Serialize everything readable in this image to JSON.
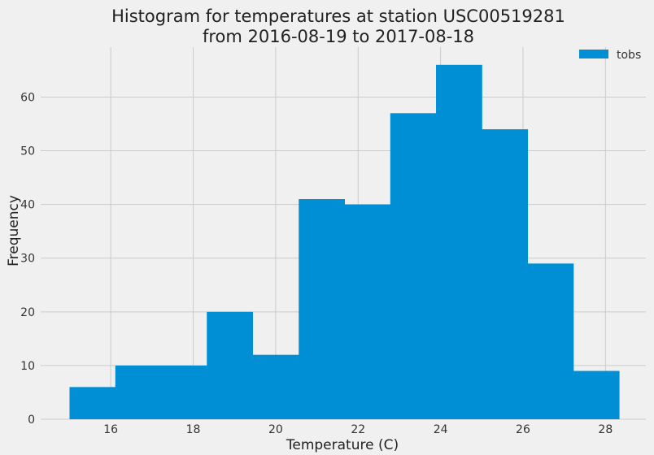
{
  "chart_data": {
    "type": "bar",
    "title_line1": "Histogram for temperatures at station USC00519281",
    "title_line2": "from 2016-08-19 to 2017-08-18",
    "xlabel": "Temperature (C)",
    "ylabel": "Frequency",
    "xlim": [
      14.3,
      28.98
    ],
    "ylim": [
      0,
      69.3
    ],
    "x_ticks": [
      16,
      18,
      20,
      22,
      24,
      26,
      28
    ],
    "y_ticks": [
      0,
      10,
      20,
      30,
      40,
      50,
      60
    ],
    "grid": true,
    "legend_position": "top-right",
    "series": [
      {
        "name": "tobs",
        "color": "#008fd5",
        "bin_edges": [
          15.0,
          16.11,
          17.22,
          18.33,
          19.44,
          20.56,
          21.67,
          22.78,
          23.89,
          25.0,
          26.11,
          27.22,
          28.33
        ],
        "counts": [
          6,
          10,
          10,
          20,
          12,
          41,
          40,
          57,
          66,
          54,
          29,
          9
        ]
      }
    ]
  }
}
